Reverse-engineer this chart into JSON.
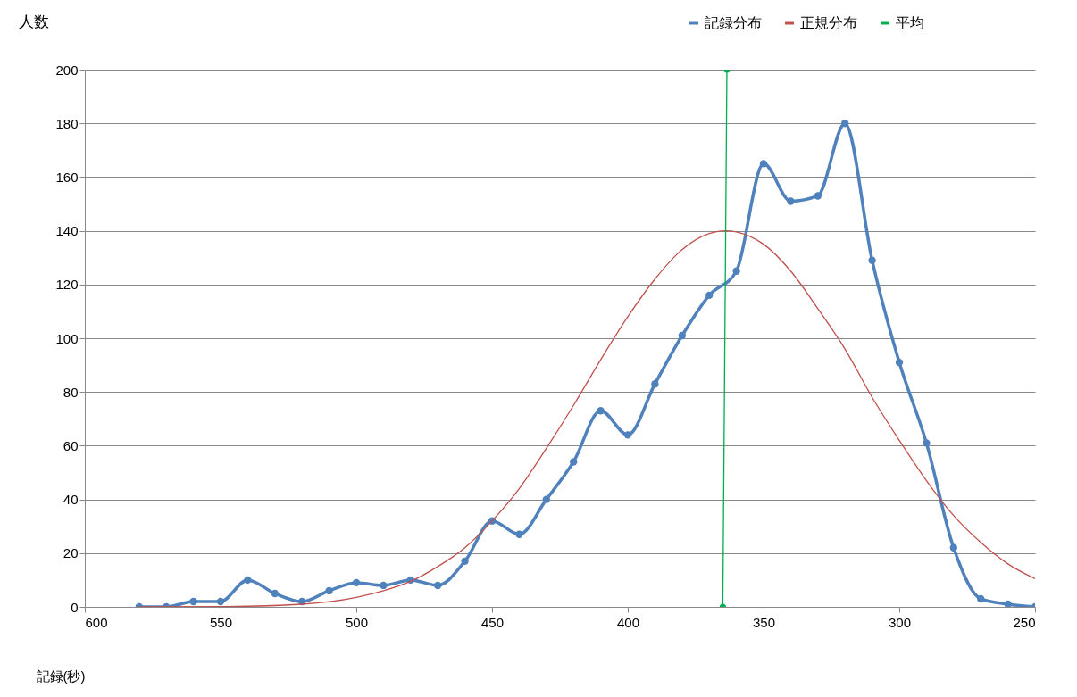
{
  "chart_data": {
    "type": "line",
    "xlabel": "記録(秒)",
    "ylabel": "人数",
    "xlim": [
      600,
      250
    ],
    "xticks": [
      600,
      550,
      500,
      450,
      400,
      350,
      300,
      250
    ],
    "ylim": [
      0,
      200
    ],
    "yticks": [
      0,
      20,
      40,
      60,
      80,
      100,
      120,
      140,
      160,
      180,
      200
    ],
    "grid": "y",
    "legend": "top right",
    "line_style": "solid",
    "series": [
      {
        "name": "記録分布",
        "color": "#4f81bd",
        "marker": "circle",
        "x": [
          580,
          570,
          560,
          550,
          540,
          530,
          520,
          510,
          500,
          490,
          480,
          470,
          460,
          450,
          440,
          430,
          420,
          410,
          400,
          390,
          380,
          370,
          360,
          350,
          340,
          330,
          320,
          310,
          300,
          290,
          280,
          270,
          260,
          250
        ],
        "values": [
          0,
          0,
          2,
          2,
          10,
          5,
          2,
          6,
          9,
          8,
          10,
          8,
          17,
          32,
          27,
          40,
          54,
          73,
          64,
          83,
          101,
          116,
          125,
          165,
          151,
          153,
          180,
          129,
          91,
          61,
          22,
          3,
          1,
          0
        ]
      },
      {
        "name": "正規分布",
        "color": "#c0504d",
        "marker": "none",
        "x": [
          580,
          550,
          520,
          500,
          490,
          480,
          470,
          460,
          450,
          440,
          430,
          420,
          410,
          400,
          390,
          380,
          370,
          364,
          360,
          350,
          340,
          330,
          320,
          310,
          300,
          290,
          280,
          270,
          260,
          250
        ],
        "values": [
          0,
          0.1,
          1,
          3.5,
          6,
          9.5,
          15,
          22,
          32,
          44,
          59,
          75,
          92,
          108,
          122,
          133,
          139,
          140,
          139.6,
          135,
          125,
          111,
          96,
          78,
          62,
          47,
          34,
          24,
          16,
          10.5
        ]
      },
      {
        "name": "平均",
        "color": "#00b050",
        "marker": "circle",
        "x": [
          363.5,
          365
        ],
        "values": [
          200,
          0
        ]
      }
    ]
  }
}
